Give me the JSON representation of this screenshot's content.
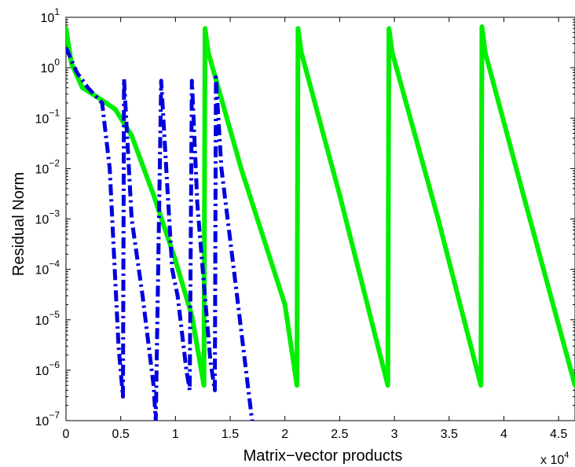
{
  "chart_data": {
    "type": "line",
    "title": "",
    "xlabel": "Matrix−vector products",
    "ylabel": "Residual Norm",
    "x_multiplier_label": {
      "base": "x 10",
      "exponent": "4"
    },
    "xlim": [
      0,
      4.65
    ],
    "ylim": [
      1e-07,
      10
    ],
    "y_scale": "log",
    "grid": false,
    "legend": "none",
    "x_ticks": [
      {
        "value": 0,
        "label": "0"
      },
      {
        "value": 0.5,
        "label": "0.5"
      },
      {
        "value": 1,
        "label": "1"
      },
      {
        "value": 1.5,
        "label": "1.5"
      },
      {
        "value": 2,
        "label": "2"
      },
      {
        "value": 2.5,
        "label": "2.5"
      },
      {
        "value": 3,
        "label": "3"
      },
      {
        "value": 3.5,
        "label": "3.5"
      },
      {
        "value": 4,
        "label": "4"
      },
      {
        "value": 4.5,
        "label": "4.5"
      }
    ],
    "y_ticks": [
      {
        "value": 1e-07,
        "base": "10",
        "exponent": "−7"
      },
      {
        "value": 1e-06,
        "base": "10",
        "exponent": "−6"
      },
      {
        "value": 1e-05,
        "base": "10",
        "exponent": "−5"
      },
      {
        "value": 0.0001,
        "base": "10",
        "exponent": "−4"
      },
      {
        "value": 0.001,
        "base": "10",
        "exponent": "−3"
      },
      {
        "value": 0.01,
        "base": "10",
        "exponent": "−2"
      },
      {
        "value": 0.1,
        "base": "10",
        "exponent": "−1"
      },
      {
        "value": 1,
        "base": "10",
        "exponent": "0"
      },
      {
        "value": 10,
        "base": "10",
        "exponent": "1"
      }
    ],
    "series": [
      {
        "color": "#00ee00",
        "style": "solid",
        "x": [
          0,
          0.05,
          0.15,
          0.3,
          0.45,
          0.6,
          0.8,
          1.0,
          1.15,
          1.26,
          1.27,
          1.3,
          1.6,
          2.0,
          2.11,
          2.12,
          2.15,
          2.5,
          2.94,
          2.95,
          2.98,
          3.4,
          3.79,
          3.8,
          3.83,
          4.2,
          4.65
        ],
        "y": [
          6,
          1.2,
          0.4,
          0.25,
          0.15,
          0.045,
          0.003,
          0.00015,
          1.2e-05,
          5e-07,
          6,
          2,
          0.01,
          2e-05,
          5e-07,
          6,
          2,
          0.003,
          5e-07,
          6,
          2,
          0.001,
          5e-07,
          6.5,
          2,
          0.002,
          5e-07
        ]
      },
      {
        "color": "#0000dd",
        "style": "dashdot",
        "x": [
          0,
          0.1,
          0.2,
          0.33,
          0.4,
          0.48,
          0.52,
          0.53,
          0.6,
          0.7,
          0.8,
          0.82,
          0.87,
          0.93,
          0.97,
          1.02,
          1.1,
          1.13,
          1.15,
          1.2,
          1.26,
          1.32,
          1.36,
          1.37,
          1.42,
          1.55,
          1.7
        ],
        "y": [
          2.5,
          0.8,
          0.4,
          0.2,
          0.01,
          3e-06,
          3e-07,
          0.6,
          0.001,
          3e-05,
          5e-07,
          1e-07,
          0.55,
          0.003,
          0.0001,
          3e-05,
          1e-06,
          4e-07,
          0.55,
          0.002,
          5e-05,
          1.5e-06,
          4e-07,
          0.65,
          0.01,
          5e-05,
          1e-07
        ]
      }
    ]
  }
}
